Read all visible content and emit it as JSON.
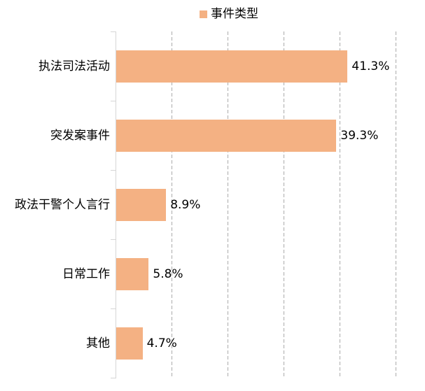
{
  "chart_data": {
    "type": "bar",
    "orientation": "horizontal",
    "title": "",
    "legend": {
      "label": "事件类型",
      "position": "top",
      "marker_color": "#F4B183"
    },
    "categories": [
      "执法司法活动",
      "突发案事件",
      "政法干警个人言行",
      "日常工作",
      "其他"
    ],
    "values": [
      41.3,
      39.3,
      8.9,
      5.8,
      4.7
    ],
    "value_labels": [
      "41.3%",
      "39.3%",
      "8.9%",
      "5.8%",
      "4.7%"
    ],
    "xlim": [
      0,
      50
    ],
    "gridline_interval": 10,
    "grid": true,
    "bar_color": "#F4B183",
    "axis_color": "#D6D6D6",
    "gridline_color": "#ABABAB",
    "text_color": "#000000",
    "background_color": "#FFFFFF"
  }
}
